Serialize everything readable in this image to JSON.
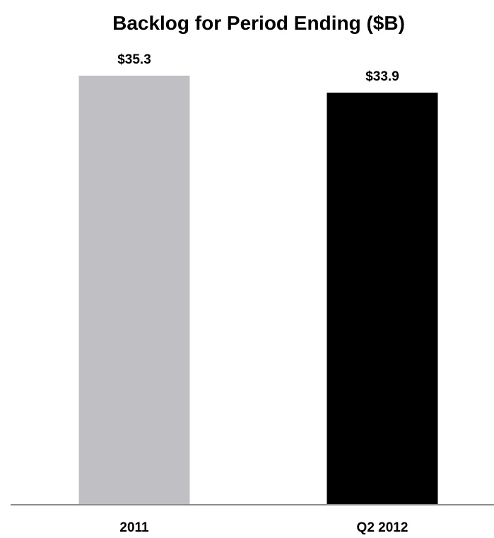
{
  "chart_data": {
    "type": "bar",
    "title": "Backlog for Period Ending ($B)",
    "xlabel": "",
    "ylabel": "",
    "categories": [
      "2011",
      "Q2 2012"
    ],
    "values": [
      35.3,
      33.9
    ],
    "data_labels": [
      "$35.3",
      "$33.9"
    ],
    "bar_colors": [
      "#c0bfc4",
      "#000000"
    ],
    "ylim": [
      0,
      35.3
    ],
    "grid": false,
    "legend": "none",
    "axis_color": "#8c8c8c"
  }
}
